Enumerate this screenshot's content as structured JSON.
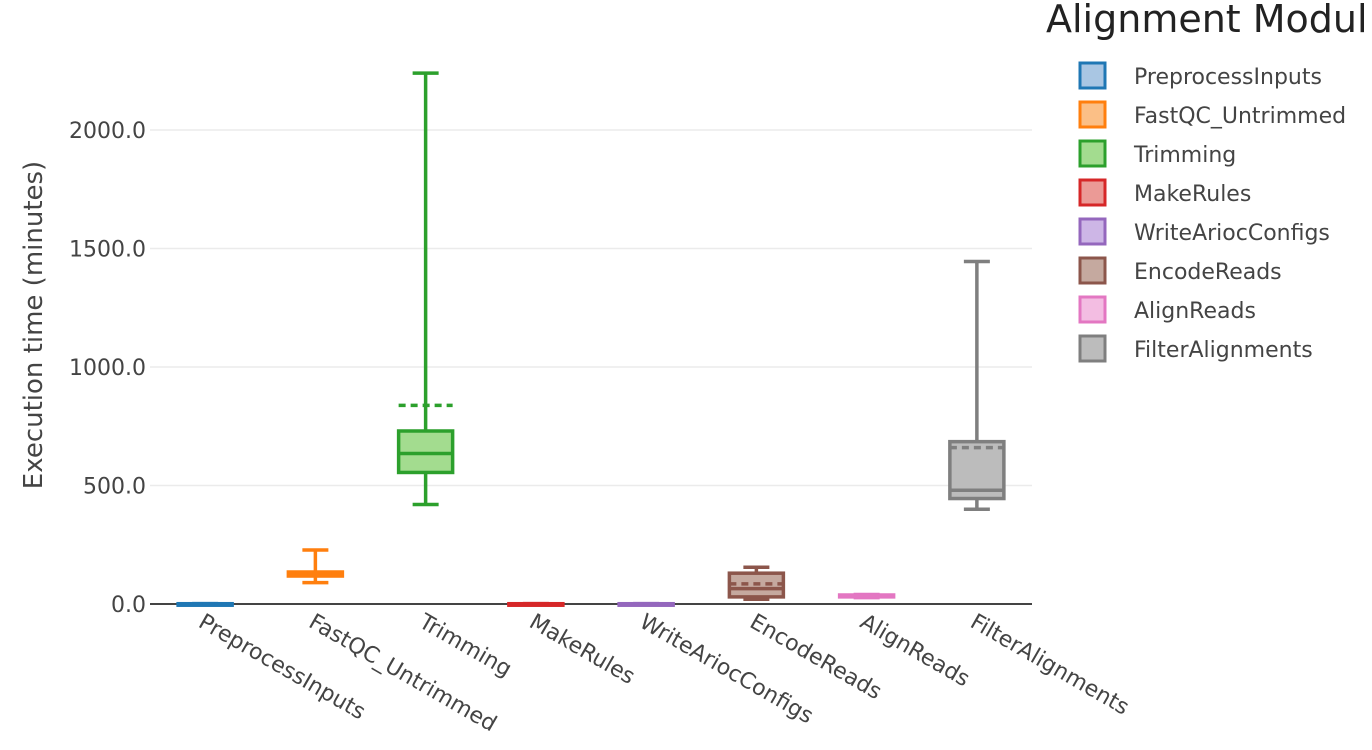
{
  "chart_data": {
    "type": "box",
    "title": "",
    "xlabel": "",
    "ylabel": "Execution time (minutes)",
    "ylim": [
      0,
      2250
    ],
    "yticks": [
      0,
      500,
      1000,
      1500,
      2000
    ],
    "ytick_labels": [
      "0.0",
      "500.0",
      "1000.0",
      "1500.0",
      "2000.0"
    ],
    "grid": true,
    "legend_title": "Alignment Modul",
    "legend_position": "right",
    "categories": [
      "PreprocessInputs",
      "FastQC_Untrimmed",
      "Trimming",
      "MakeRules",
      "WriteAriocConfigs",
      "EncodeReads",
      "AlignReads",
      "FilterAlignments"
    ],
    "series": [
      {
        "name": "PreprocessInputs",
        "color": "#1f77b4",
        "fill": "#a9c6e3",
        "min": 0.5,
        "q1": 0.8,
        "median": 1,
        "q3": 1.2,
        "max": 1.5,
        "mean": 1
      },
      {
        "name": "FastQC_Untrimmed",
        "color": "#ff7f0e",
        "fill": "#fbbf86",
        "min": 90,
        "q1": 118,
        "median": 125,
        "q3": 135,
        "max": 228,
        "mean": 130
      },
      {
        "name": "Trimming",
        "color": "#2ca02c",
        "fill": "#a3dc8f",
        "min": 420,
        "q1": 555,
        "median": 635,
        "q3": 730,
        "max": 2240,
        "mean": 838
      },
      {
        "name": "MakeRules",
        "color": "#d62728",
        "fill": "#eb9a96",
        "min": 0.5,
        "q1": 0.8,
        "median": 1,
        "q3": 1.2,
        "max": 1.5,
        "mean": 1
      },
      {
        "name": "WriteAriocConfigs",
        "color": "#9467bd",
        "fill": "#cdb6e6",
        "min": 0.5,
        "q1": 0.8,
        "median": 1,
        "q3": 1.2,
        "max": 1.5,
        "mean": 1
      },
      {
        "name": "EncodeReads",
        "color": "#8c564b",
        "fill": "#c5a99f",
        "min": 20,
        "q1": 30,
        "median": 65,
        "q3": 130,
        "max": 155,
        "mean": 85
      },
      {
        "name": "AlignReads",
        "color": "#e377c2",
        "fill": "#f3bde2",
        "min": 27,
        "q1": 30,
        "median": 34,
        "q3": 38,
        "max": 40,
        "mean": 34
      },
      {
        "name": "FilterAlignments",
        "color": "#7f7f7f",
        "fill": "#bcbcbc",
        "min": 400,
        "q1": 445,
        "median": 480,
        "q3": 685,
        "max": 1445,
        "mean": 660
      }
    ]
  }
}
